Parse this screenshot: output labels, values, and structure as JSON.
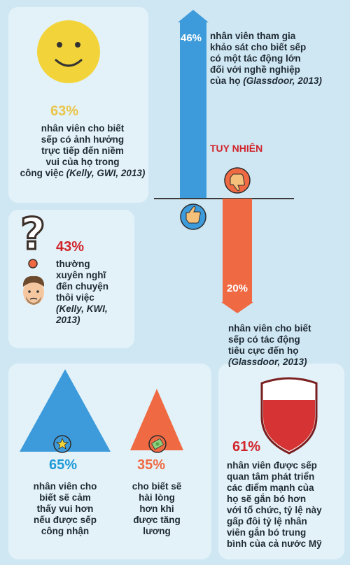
{
  "colors": {
    "background": "#cfe7f3",
    "panel": "#e3f2f9",
    "blue": "#3d9bdb",
    "orange": "#ef6a43",
    "yellow": "#f2d43a",
    "red": "#d63434",
    "gold_text": "#eac54a",
    "red_text": "#d1232a",
    "teal_text": "#1e9ad6"
  },
  "happy_stat": {
    "percent": "63%",
    "lines": [
      "nhân viên cho biết",
      "sếp có ảnh hưởng",
      "trực tiếp đến niềm",
      "vui của họ trong",
      "công việc"
    ],
    "source": "(Kelly, GWI, 2013)",
    "icon": "smiley-face-icon"
  },
  "quit_stat": {
    "percent": "43%",
    "lines": [
      "thường",
      "xuyên nghĩ",
      "đến chuyện",
      "thôi việc"
    ],
    "source_lines": [
      "(Kelly, KWI,",
      "2013)"
    ],
    "icons": [
      "question-mark-icon",
      "worried-man-icon"
    ]
  },
  "impact_stat": {
    "percent": "46%",
    "lines": [
      "nhân viên tham gia",
      "khảo sát cho biết sếp",
      "có một tác động lớn",
      "đối với nghề nghiệp",
      "của họ"
    ],
    "source": "(Glassdoor, 2013)",
    "icon": "thumbs-up-icon"
  },
  "however_label": "TUY NHIÊN",
  "negative_stat": {
    "percent": "20%",
    "lines": [
      "nhân viên cho biết",
      "sếp có tác động",
      "tiêu cực đến họ"
    ],
    "source": "(Glassdoor, 2013)",
    "icon": "thumbs-down-icon"
  },
  "recognition_stat": {
    "percent": "65%",
    "lines": [
      "nhân viên cho",
      "biết sẽ cảm",
      "thấy vui hơn",
      "nếu được sếp",
      "công nhận"
    ],
    "icon": "star-badge-icon"
  },
  "raise_stat": {
    "percent": "35%",
    "lines": [
      "cho biết sẽ",
      "hài lòng",
      "hơn khi",
      "được tăng",
      "lương"
    ],
    "icon": "money-icon"
  },
  "development_stat": {
    "percent": "61%",
    "lines": [
      "nhân viên được sếp",
      "quan tâm phát triển",
      "các điểm mạnh của",
      "họ sẽ gắn bó hơn",
      "với tổ chức, tỷ lệ này",
      "gấp đôi tỷ lệ nhân",
      "viên gắn bó trung",
      "bình của cả nước Mỹ"
    ],
    "icon": "shield-icon"
  }
}
